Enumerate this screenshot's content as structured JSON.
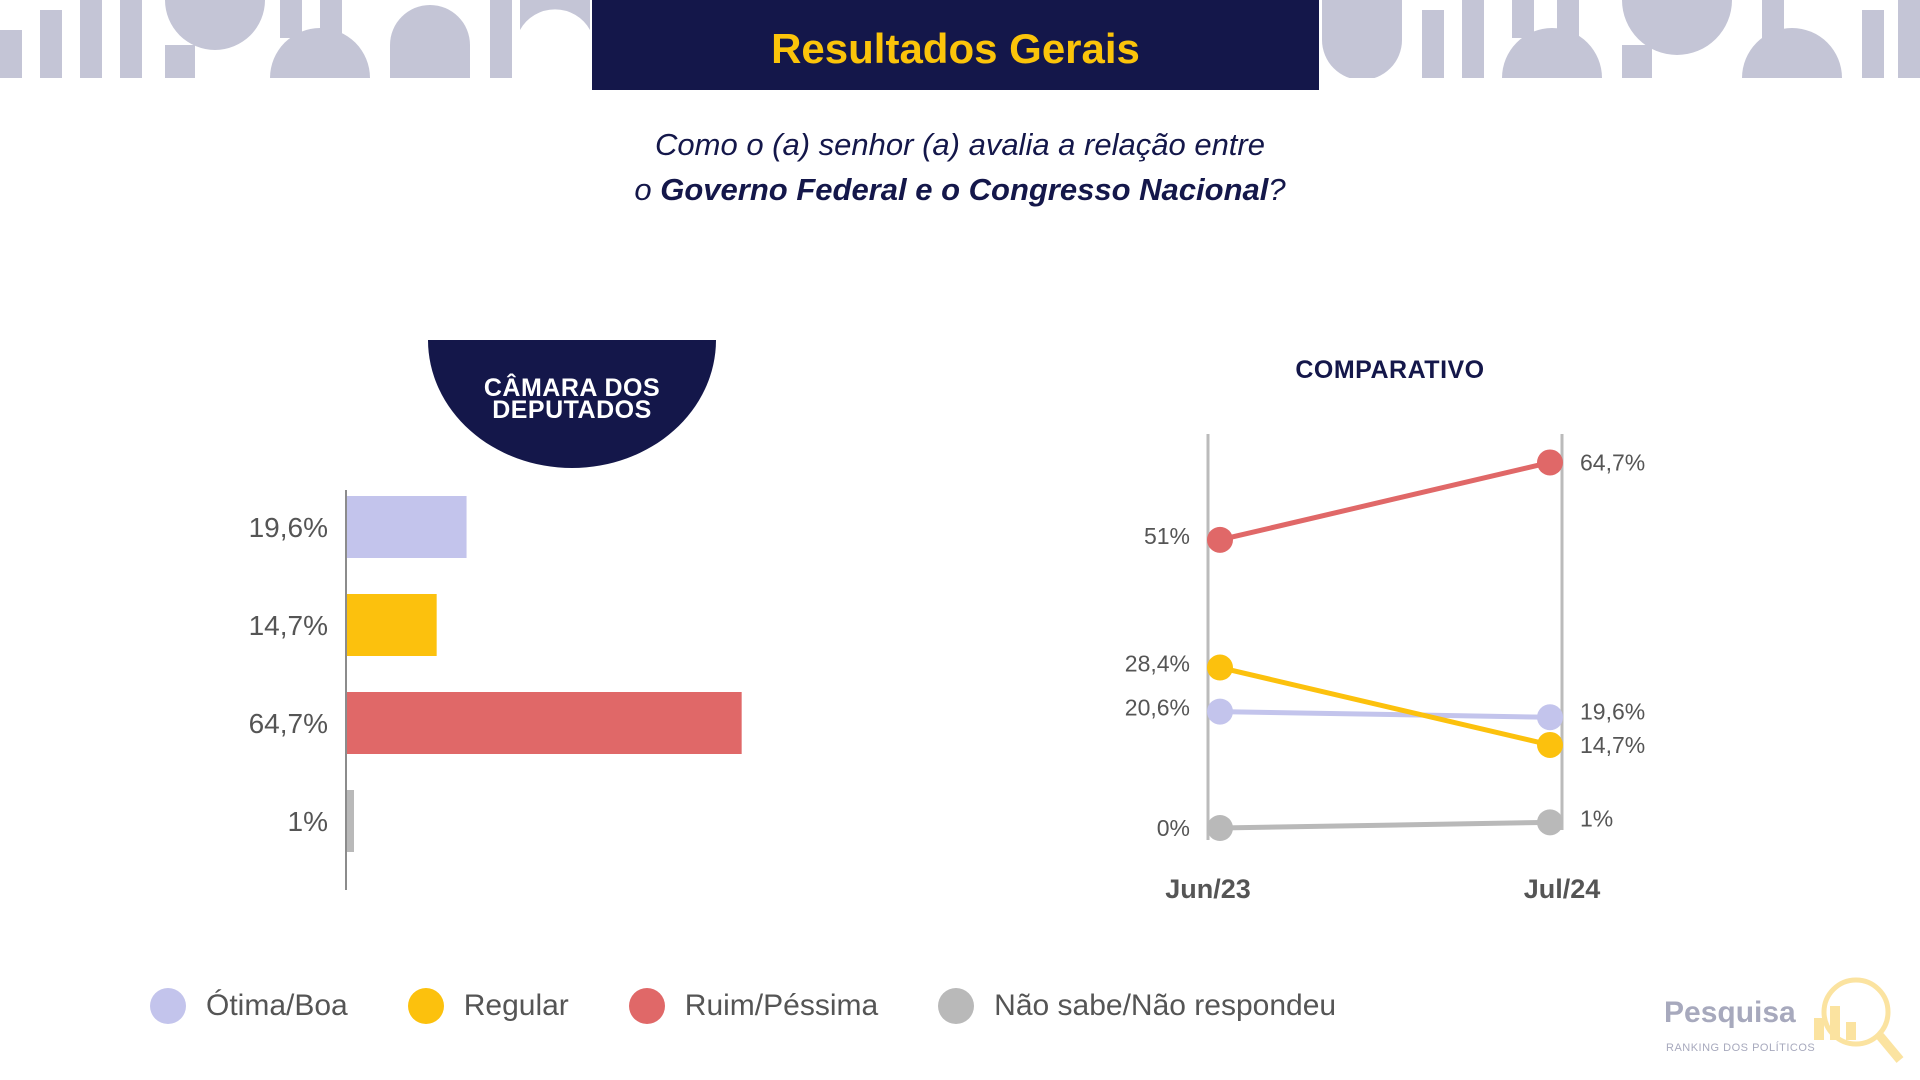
{
  "header": {
    "title": "Resultados Gerais",
    "question_line1": "Como o (a) senhor (a) avalia a relação entre",
    "question_line2_pre": "o ",
    "question_line2_bold": "Governo Federal e o Congresso Nacional",
    "question_line2_post": "?"
  },
  "left_panel": {
    "badge_line1": "CÂMARA DOS",
    "badge_line2": "DEPUTADOS"
  },
  "right_panel": {
    "title": "COMPARATIVO"
  },
  "colors": {
    "navy": "#14174a",
    "yellow_title": "#fbc40a",
    "otima": "#c3c4ec",
    "regular": "#fcc10d",
    "ruim": "#e06868",
    "nao_sabe": "#b9b9b9"
  },
  "chart_data": [
    {
      "type": "bar",
      "orientation": "horizontal",
      "categories": [
        "Ótima/Boa",
        "Regular",
        "Ruim/Péssima",
        "Não sabe/Não respondeu"
      ],
      "values": [
        19.6,
        14.7,
        64.7,
        1
      ],
      "value_labels": [
        "19,6%",
        "14,7%",
        "64,7%",
        "1%"
      ],
      "colors": [
        "#c3c4ec",
        "#fcc10d",
        "#e06868",
        "#b9b9b9"
      ]
    },
    {
      "type": "line",
      "title": "COMPARATIVO",
      "x": [
        "Jun/23",
        "Jul/24"
      ],
      "series": [
        {
          "name": "Ótima/Boa",
          "values": [
            20.6,
            19.6
          ],
          "labels": [
            "20,6%",
            "19,6%"
          ],
          "color": "#c3c4ec"
        },
        {
          "name": "Regular",
          "values": [
            28.4,
            14.7
          ],
          "labels": [
            "28,4%",
            "14,7%"
          ],
          "color": "#fcc10d"
        },
        {
          "name": "Ruim/Péssima",
          "values": [
            51,
            64.7
          ],
          "labels": [
            "51%",
            "64,7%"
          ],
          "color": "#e06868"
        },
        {
          "name": "Não sabe/Não respondeu",
          "values": [
            0,
            1
          ],
          "labels": [
            "0%",
            "1%"
          ],
          "color": "#b9b9b9"
        }
      ],
      "ylim": [
        0,
        70
      ]
    }
  ],
  "legend": [
    {
      "label": "Ótima/Boa",
      "color": "#c3c4ec"
    },
    {
      "label": "Regular",
      "color": "#fcc10d"
    },
    {
      "label": "Ruim/Péssima",
      "color": "#e06868"
    },
    {
      "label": "Não sabe/Não respondeu",
      "color": "#b9b9b9"
    }
  ],
  "logo": {
    "text": "Pesquisa",
    "subtext": "RANKING DOS POLÍTICOS"
  }
}
